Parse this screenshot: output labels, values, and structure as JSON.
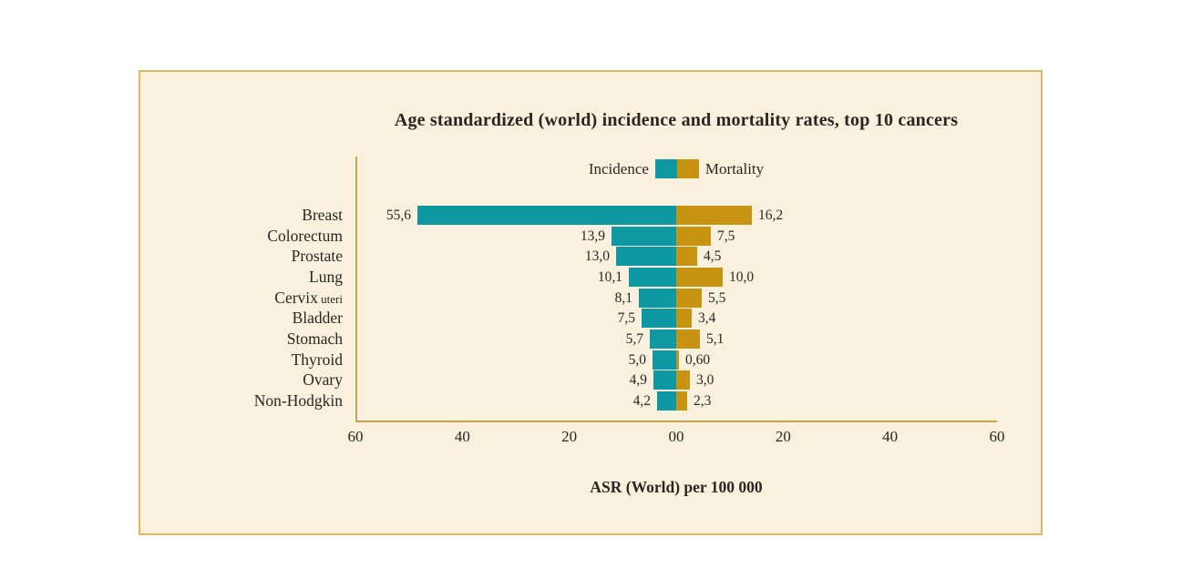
{
  "title": "Age standardized (world) incidence and mortality rates, top 10 cancers",
  "legend": {
    "incidence_label": "Incidence",
    "mortality_label": "Mortality"
  },
  "x_axis_title": "ASR (World) per 100 000",
  "colors": {
    "incidence": "#0e99a2",
    "mortality": "#c79412",
    "panel_bg": "#f9f0dd",
    "panel_border": "#ddb964",
    "axis_line": "#c9a44c",
    "text": "#2a2623"
  },
  "category_display": [
    {
      "main": "Breast"
    },
    {
      "main": "Colorectum"
    },
    {
      "main": "Prostate"
    },
    {
      "main": "Lung"
    },
    {
      "main": "Cervix",
      "suffix": "uteri"
    },
    {
      "main": "Bladder"
    },
    {
      "main": "Stomach"
    },
    {
      "main": "Thyroid"
    },
    {
      "main": "Ovary"
    },
    {
      "main": "Non-Hodgkin"
    }
  ],
  "chart_data": {
    "type": "bar",
    "orientation": "horizontal-diverging",
    "title": "Age standardized (world) incidence and mortality rates, top 10 cancers",
    "xlabel": "ASR (World) per 100 000",
    "ylabel": "",
    "xlim": [
      -60,
      60
    ],
    "x_ticks": [
      "60",
      "40",
      "20",
      "00",
      "20",
      "40",
      "60"
    ],
    "grid": false,
    "legend_position": "top-center",
    "categories": [
      "Breast",
      "Colorectum",
      "Prostate",
      "Lung",
      "Cervix uteri",
      "Bladder",
      "Stomach",
      "Thyroid",
      "Ovary",
      "Non-Hodgkin"
    ],
    "series": [
      {
        "name": "Incidence",
        "side": "left",
        "color": "#0e99a2",
        "values": [
          55.6,
          13.9,
          13.0,
          10.1,
          8.1,
          7.5,
          5.7,
          5.0,
          4.9,
          4.2
        ],
        "value_labels": [
          "55,6",
          "13,9",
          "13,0",
          "10,1",
          "8,1",
          "7,5",
          "5,7",
          "5,0",
          "4,9",
          "4,2"
        ]
      },
      {
        "name": "Mortality",
        "side": "right",
        "color": "#c79412",
        "values": [
          16.2,
          7.5,
          4.5,
          10.0,
          5.5,
          3.4,
          5.1,
          0.6,
          3.0,
          2.3
        ],
        "value_labels": [
          "16,2",
          "7,5",
          "4,5",
          "10,0",
          "5,5",
          "3,4",
          "5,1",
          "0,60",
          "3,0",
          "2,3"
        ]
      }
    ]
  }
}
